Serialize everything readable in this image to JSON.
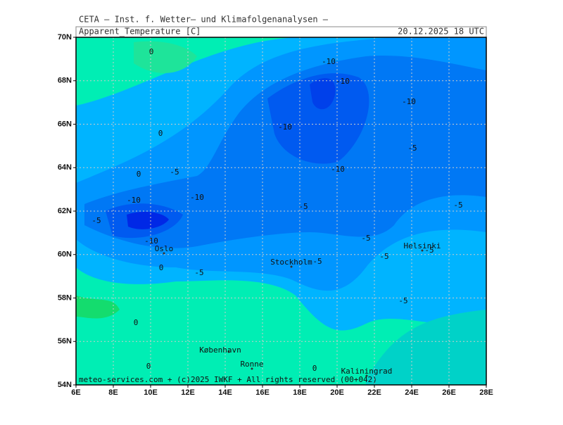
{
  "header": {
    "title": "CETA — Inst. f. Wetter— und Klimafolgenanalysen —",
    "field": "Apparent_Temperature [C]",
    "valid_time": "20.12.2025 18 UTC"
  },
  "map": {
    "lat_labels": [
      "70N",
      "68N",
      "66N",
      "64N",
      "62N",
      "60N",
      "58N",
      "56N",
      "54N"
    ],
    "lon_labels": [
      "6E",
      "8E",
      "10E",
      "12E",
      "14E",
      "16E",
      "18E",
      "20E",
      "22E",
      "24E",
      "26E",
      "28E"
    ],
    "contour_labels": [
      "0",
      "0",
      "0",
      "-5",
      "-10",
      "-5",
      "-10",
      "-10",
      "0",
      "-5",
      "-10",
      "-10",
      "-10",
      "-10",
      "-5",
      "-10",
      "-5",
      "-5",
      "-5",
      "-5",
      "-5",
      "-5",
      "-5",
      "0",
      "0",
      "0"
    ],
    "cities": [
      "Oslo",
      "Stockholm",
      "Helsinki",
      "København",
      "Ronne",
      "Kaliningrad"
    ],
    "footer": "meteo-services.com + (c)2025 IWKF + All rights reserved (00+042)"
  }
}
